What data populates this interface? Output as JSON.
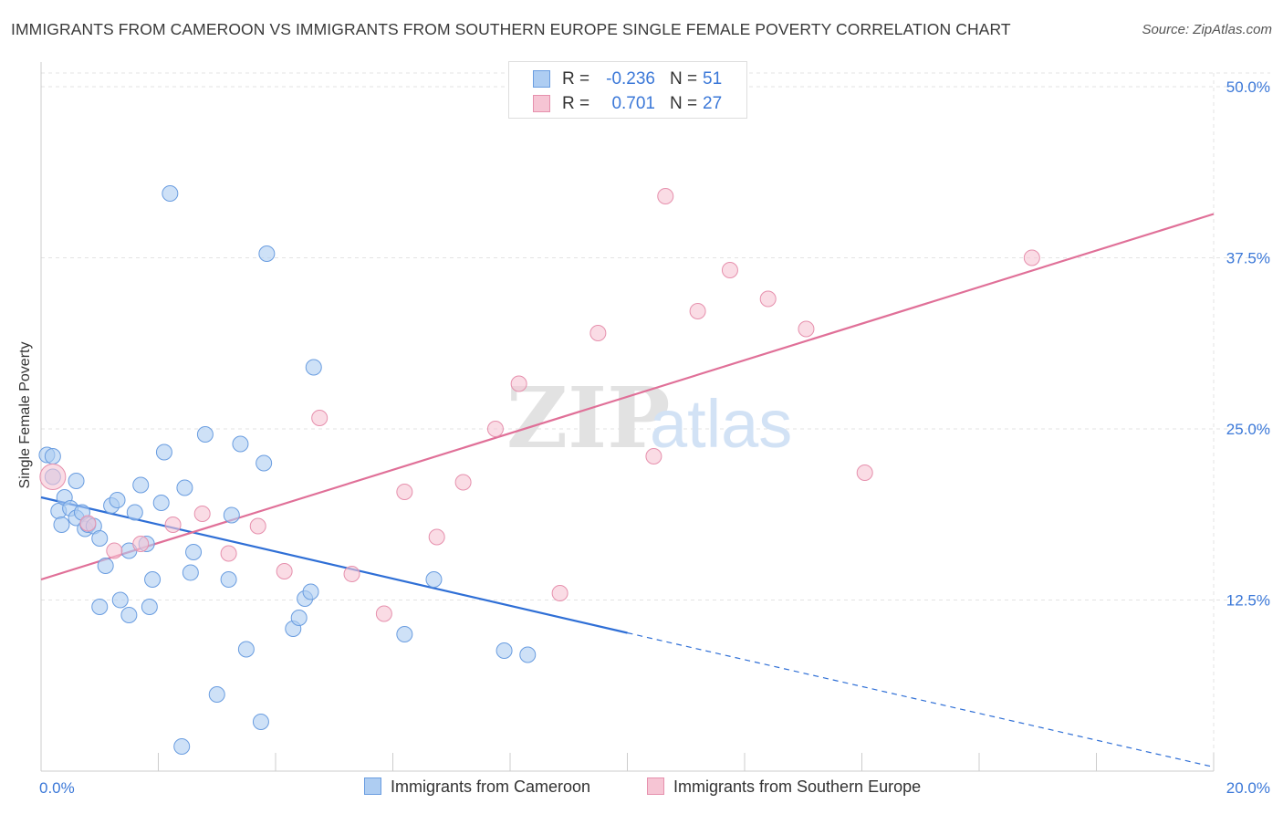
{
  "title": "IMMIGRANTS FROM CAMEROON VS IMMIGRANTS FROM SOUTHERN EUROPE SINGLE FEMALE POVERTY CORRELATION CHART",
  "source": "Source: ZipAtlas.com",
  "watermark": {
    "zip": "ZIP",
    "atlas": "atlas"
  },
  "legend": {
    "r_label": "R =",
    "n_label": "N =",
    "rows": [
      {
        "r": "-0.236",
        "n": "51"
      },
      {
        "r": "0.701",
        "n": "27"
      }
    ]
  },
  "colors": {
    "blue": "#3b78d8",
    "blue_fill": "#aecdf2",
    "blue_line": "#2f6fd6",
    "pink": "#e07098",
    "pink_fill": "#f6c5d4",
    "grid": "#e3e3e3"
  },
  "chart_data": {
    "type": "scatter",
    "title": "IMMIGRANTS FROM CAMEROON VS IMMIGRANTS FROM SOUTHERN EUROPE SINGLE FEMALE POVERTY CORRELATION CHART",
    "xlabel": "",
    "ylabel": "Single Female Poverty",
    "xlim": [
      0,
      20
    ],
    "ylim": [
      0,
      50
    ],
    "x_tick_labels": [
      "0.0%",
      "20.0%"
    ],
    "y_ticks": [
      12.5,
      25.0,
      37.5,
      50.0
    ],
    "y_tick_labels": [
      "12.5%",
      "25.0%",
      "37.5%",
      "50.0%"
    ],
    "grid": true,
    "legend_position": "top-center",
    "series": [
      {
        "name": "Immigrants from Cameroon",
        "r": -0.236,
        "n": 51,
        "points": [
          [
            0.1,
            23.1
          ],
          [
            0.2,
            23.0
          ],
          [
            0.2,
            21.5
          ],
          [
            0.6,
            21.2
          ],
          [
            0.3,
            19.0
          ],
          [
            0.35,
            18.0
          ],
          [
            0.4,
            20.0
          ],
          [
            0.5,
            19.2
          ],
          [
            0.6,
            18.5
          ],
          [
            0.7,
            18.9
          ],
          [
            0.75,
            17.7
          ],
          [
            0.8,
            18.0
          ],
          [
            0.9,
            17.9
          ],
          [
            1.0,
            17.0
          ],
          [
            1.2,
            19.4
          ],
          [
            1.3,
            19.8
          ],
          [
            1.1,
            15.0
          ],
          [
            1.5,
            16.1
          ],
          [
            1.6,
            18.9
          ],
          [
            1.7,
            20.9
          ],
          [
            1.8,
            16.6
          ],
          [
            1.9,
            14.0
          ],
          [
            2.05,
            19.6
          ],
          [
            2.1,
            23.3
          ],
          [
            2.2,
            42.2
          ],
          [
            2.45,
            20.7
          ],
          [
            2.55,
            14.5
          ],
          [
            2.6,
            16.0
          ],
          [
            2.8,
            24.6
          ],
          [
            3.0,
            5.6
          ],
          [
            3.2,
            14.0
          ],
          [
            3.25,
            18.7
          ],
          [
            3.4,
            23.9
          ],
          [
            3.5,
            8.9
          ],
          [
            3.75,
            3.6
          ],
          [
            3.8,
            22.5
          ],
          [
            3.85,
            37.8
          ],
          [
            4.3,
            10.4
          ],
          [
            4.4,
            11.2
          ],
          [
            4.5,
            12.6
          ],
          [
            4.6,
            13.1
          ],
          [
            4.65,
            29.5
          ],
          [
            1.35,
            12.5
          ],
          [
            1.5,
            11.4
          ],
          [
            1.85,
            12.0
          ],
          [
            1.0,
            12.0
          ],
          [
            6.7,
            14.0
          ],
          [
            6.2,
            10.0
          ],
          [
            7.9,
            8.8
          ],
          [
            8.3,
            8.5
          ],
          [
            2.4,
            1.8
          ]
        ],
        "trend": {
          "x": [
            0,
            10
          ],
          "y": [
            20.0,
            10.1
          ]
        },
        "trend_dashed": {
          "x": [
            10,
            20
          ],
          "y": [
            10.1,
            0.3
          ]
        }
      },
      {
        "name": "Immigrants from Southern Europe",
        "r": 0.701,
        "n": 27,
        "points": [
          [
            0.2,
            21.5
          ],
          [
            0.8,
            18.1
          ],
          [
            1.25,
            16.1
          ],
          [
            1.7,
            16.6
          ],
          [
            2.25,
            18.0
          ],
          [
            2.75,
            18.8
          ],
          [
            3.2,
            15.9
          ],
          [
            3.7,
            17.9
          ],
          [
            4.15,
            14.6
          ],
          [
            4.75,
            25.8
          ],
          [
            5.3,
            14.4
          ],
          [
            5.85,
            11.5
          ],
          [
            6.2,
            20.4
          ],
          [
            6.75,
            17.1
          ],
          [
            7.2,
            21.1
          ],
          [
            7.75,
            25.0
          ],
          [
            8.15,
            28.3
          ],
          [
            8.85,
            13.0
          ],
          [
            9.5,
            32.0
          ],
          [
            10.45,
            23.0
          ],
          [
            10.65,
            42.0
          ],
          [
            11.2,
            33.6
          ],
          [
            11.75,
            36.6
          ],
          [
            12.4,
            34.5
          ],
          [
            13.05,
            32.3
          ],
          [
            14.05,
            21.8
          ],
          [
            16.9,
            37.5
          ]
        ],
        "trend": {
          "x": [
            0,
            20
          ],
          "y": [
            14.0,
            40.7
          ]
        }
      }
    ]
  }
}
